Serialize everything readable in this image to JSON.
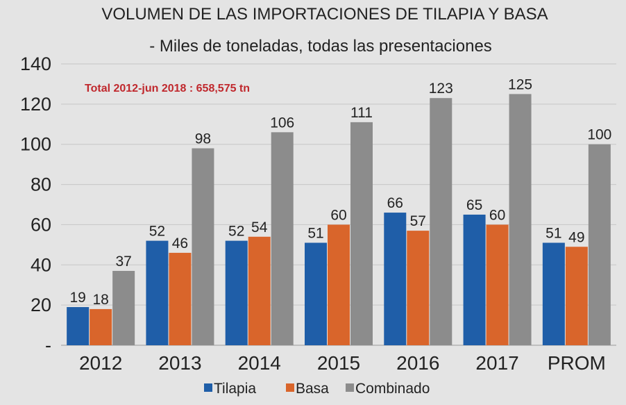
{
  "chart_data": {
    "type": "bar",
    "title": "VOLUMEN DE LAS IMPORTACIONES DE TILAPIA Y BASA",
    "subtitle": "- Miles de toneladas, todas las presentaciones",
    "annotation": "Total 2012-jun 2018 : 658,575 tn",
    "categories": [
      "2012",
      "2013",
      "2014",
      "2015",
      "2016",
      "2017",
      "PROM"
    ],
    "series": [
      {
        "name": "Tilapia",
        "color": "#1f5ea8",
        "values": [
          19,
          52,
          52,
          51,
          66,
          65,
          51
        ]
      },
      {
        "name": "Basa",
        "color": "#d9652b",
        "values": [
          18,
          46,
          54,
          60,
          57,
          60,
          49
        ]
      },
      {
        "name": "Combinado",
        "color": "#8c8c8c",
        "values": [
          37,
          98,
          106,
          111,
          123,
          125,
          100
        ]
      }
    ],
    "yticks": [
      "-",
      "20",
      "40",
      "60",
      "80",
      "100",
      "120",
      "140"
    ],
    "ylim": [
      0,
      140
    ],
    "grid": true,
    "legend_position": "bottom",
    "annotation_color": "#c0282d"
  }
}
